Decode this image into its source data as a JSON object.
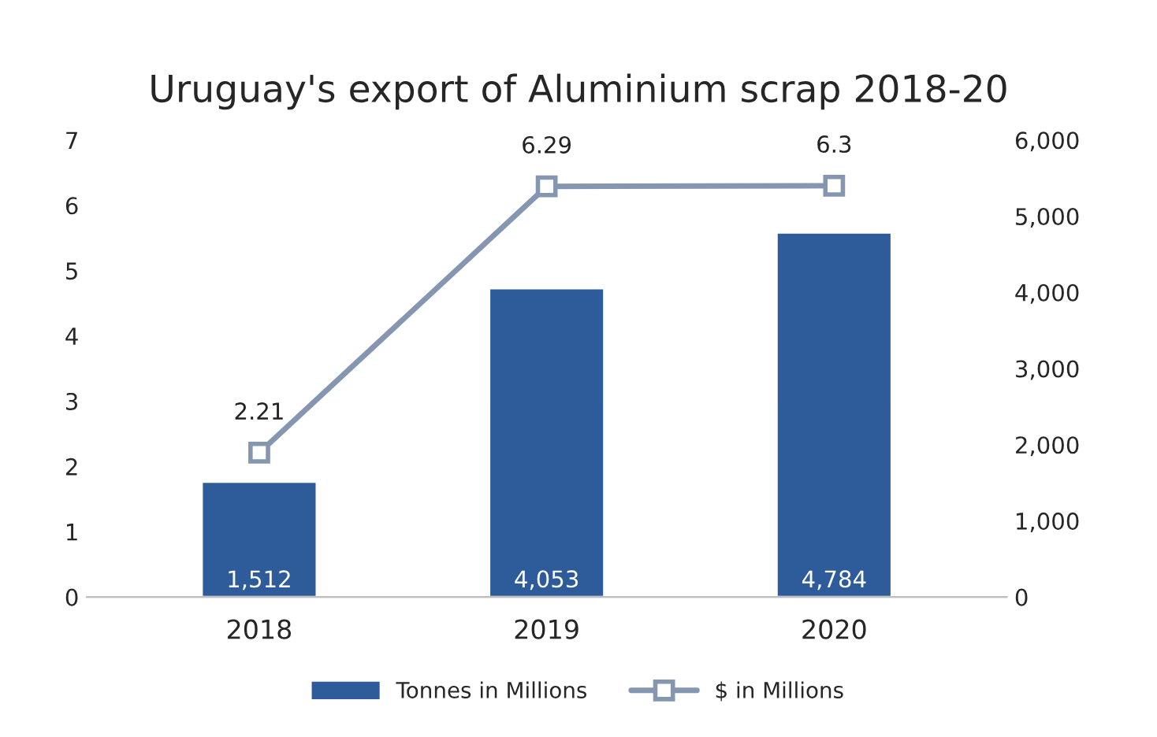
{
  "chart_data": {
    "type": "bar",
    "title": "Uruguay's export of Aluminium scrap 2018-20",
    "categories": [
      "2018",
      "2019",
      "2020"
    ],
    "series": [
      {
        "name": "Tonnes in Millions",
        "color": "#2e5c9a",
        "axis": "y2",
        "values": [
          1512,
          4053,
          4784
        ],
        "value_labels": [
          "1,512",
          "4,053",
          "4,784"
        ]
      },
      {
        "type": "line",
        "name": "$ in Millions",
        "color": "#8496b0",
        "values": [
          2.21,
          6.29,
          6.3
        ],
        "value_labels": [
          "2.21",
          "6.29",
          "6.3"
        ],
        "marker": "square",
        "line_style": "solid"
      }
    ],
    "ylim": [
      0,
      7
    ],
    "yticks": [
      0,
      1,
      2,
      3,
      4,
      5,
      6,
      7
    ],
    "y2lim": [
      0,
      6000
    ],
    "y2ticks": [
      0,
      {
        "value": 1000,
        "label": "1,000"
      },
      {
        "value": 2000,
        "label": "2,000"
      },
      {
        "value": 3000,
        "label": "3,000"
      },
      {
        "value": 4000,
        "label": "4,000"
      },
      {
        "value": 5000,
        "label": "5,000"
      },
      {
        "value": 6000,
        "label": "6,000"
      }
    ],
    "grid": false,
    "legend": "bottom"
  }
}
